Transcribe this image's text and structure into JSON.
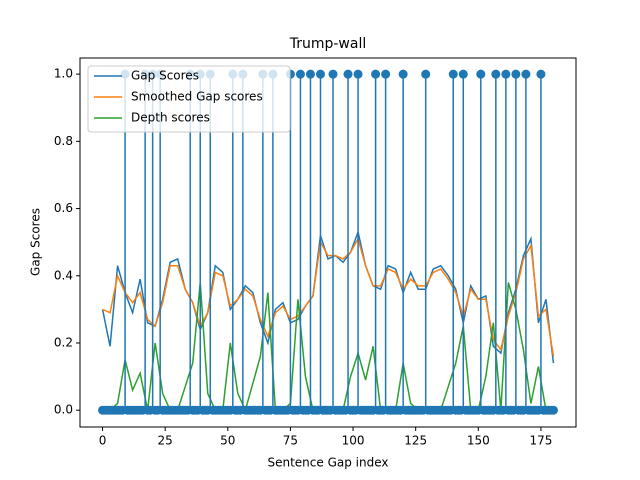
{
  "chart_data": {
    "type": "line",
    "title": "Trump-wall",
    "xlabel": "Sentence Gap index",
    "ylabel": "Gap Scores",
    "xlim": [
      -9,
      189
    ],
    "ylim": [
      -0.05,
      1.048
    ],
    "xticks": [
      0,
      25,
      50,
      75,
      100,
      125,
      150,
      175
    ],
    "yticks": [
      {
        "value": 0,
        "label": "0.0"
      },
      0.2,
      0.4,
      0.6,
      0.8,
      {
        "value": 1,
        "label": "1.0"
      }
    ],
    "legend": "upper left",
    "x": [
      0,
      3,
      6,
      9,
      12,
      15,
      18,
      21,
      24,
      27,
      30,
      33,
      36,
      39,
      42,
      45,
      48,
      51,
      54,
      57,
      60,
      63,
      66,
      69,
      72,
      75,
      78,
      81,
      84,
      87,
      90,
      93,
      96,
      99,
      102,
      105,
      108,
      111,
      114,
      117,
      120,
      123,
      126,
      129,
      132,
      135,
      138,
      141,
      144,
      147,
      150,
      153,
      156,
      159,
      162,
      165,
      168,
      171,
      174,
      177,
      180
    ],
    "series": [
      {
        "name": "Gap Scores",
        "color": "#1f77b4",
        "values": [
          0.3,
          0.19,
          0.43,
          0.35,
          0.29,
          0.39,
          0.26,
          0.25,
          0.33,
          0.44,
          0.45,
          0.36,
          0.32,
          0.24,
          0.29,
          0.43,
          0.41,
          0.3,
          0.33,
          0.37,
          0.35,
          0.26,
          0.2,
          0.3,
          0.32,
          0.26,
          0.27,
          0.31,
          0.34,
          0.52,
          0.45,
          0.46,
          0.44,
          0.47,
          0.53,
          0.43,
          0.37,
          0.36,
          0.43,
          0.42,
          0.35,
          0.41,
          0.36,
          0.36,
          0.42,
          0.43,
          0.4,
          0.36,
          0.26,
          0.37,
          0.33,
          0.34,
          0.19,
          0.17,
          0.29,
          0.36,
          0.46,
          0.51,
          0.26,
          0.33,
          0.14
        ]
      },
      {
        "name": "Smoothed Gap scores",
        "color": "#ff7f0e",
        "values": [
          0.3,
          0.29,
          0.4,
          0.35,
          0.32,
          0.35,
          0.27,
          0.25,
          0.32,
          0.43,
          0.43,
          0.36,
          0.32,
          0.25,
          0.29,
          0.41,
          0.4,
          0.31,
          0.33,
          0.36,
          0.34,
          0.27,
          0.22,
          0.29,
          0.31,
          0.27,
          0.28,
          0.31,
          0.34,
          0.5,
          0.46,
          0.46,
          0.45,
          0.47,
          0.51,
          0.43,
          0.37,
          0.37,
          0.42,
          0.41,
          0.36,
          0.39,
          0.37,
          0.37,
          0.41,
          0.42,
          0.39,
          0.35,
          0.28,
          0.36,
          0.33,
          0.33,
          0.21,
          0.18,
          0.28,
          0.35,
          0.45,
          0.49,
          0.28,
          0.3,
          0.16
        ]
      },
      {
        "name": "Depth scores",
        "color": "#2ca02c",
        "values": [
          0,
          0,
          0.02,
          0.15,
          0.06,
          0.11,
          0,
          0.2,
          0.05,
          0,
          0,
          0.07,
          0.14,
          0.38,
          0.05,
          0,
          0,
          0.2,
          0.05,
          0,
          0.08,
          0.16,
          0.35,
          0,
          0,
          0.02,
          0.33,
          0.1,
          0,
          0,
          0,
          0,
          0,
          0.1,
          0.17,
          0.09,
          0.19,
          0,
          0,
          0,
          0.14,
          0.02,
          0,
          0,
          0,
          0,
          0.07,
          0.14,
          0.25,
          0,
          0,
          0.1,
          0.26,
          0,
          0.38,
          0.3,
          0.18,
          0.02,
          0.13,
          0,
          0
        ]
      }
    ],
    "stems": {
      "color": "#1f77b4",
      "baseline_color": "#d62728",
      "x": [
        0,
        1,
        2,
        3,
        4,
        5,
        6,
        7,
        8,
        9,
        10,
        11,
        12,
        13,
        14,
        15,
        16,
        17,
        18,
        19,
        20,
        21,
        22,
        23,
        24,
        25,
        26,
        27,
        28,
        29,
        30,
        31,
        32,
        33,
        34,
        35,
        36,
        37,
        38,
        39,
        40,
        41,
        42,
        43,
        44,
        45,
        46,
        47,
        48,
        49,
        50,
        51,
        52,
        53,
        54,
        55,
        56,
        57,
        58,
        59,
        60,
        61,
        62,
        63,
        64,
        65,
        66,
        67,
        68,
        69,
        70,
        71,
        72,
        73,
        74,
        75,
        76,
        77,
        78,
        79,
        80,
        81,
        82,
        83,
        84,
        85,
        86,
        87,
        88,
        89,
        90,
        91,
        92,
        93,
        94,
        95,
        96,
        97,
        98,
        99,
        100,
        101,
        102,
        103,
        104,
        105,
        106,
        107,
        108,
        109,
        110,
        111,
        112,
        113,
        114,
        115,
        116,
        117,
        118,
        119,
        120,
        121,
        122,
        123,
        124,
        125,
        126,
        127,
        128,
        129,
        130,
        131,
        132,
        133,
        134,
        135,
        136,
        137,
        138,
        139,
        140,
        141,
        142,
        143,
        144,
        145,
        146,
        147,
        148,
        149,
        150,
        151,
        152,
        153,
        154,
        155,
        156,
        157,
        158,
        159,
        160,
        161,
        162,
        163,
        164,
        165,
        166,
        167,
        168,
        169,
        170,
        171,
        172,
        173,
        174,
        175,
        176,
        177,
        178,
        179,
        180
      ],
      "values": [
        0,
        0,
        0,
        0,
        0,
        0,
        0,
        0,
        0,
        1,
        0,
        0,
        0,
        0,
        0,
        0,
        0,
        1,
        0,
        0,
        1,
        0,
        0,
        1,
        0,
        0,
        0,
        0,
        0,
        0,
        0,
        0,
        0,
        0,
        0,
        1,
        0,
        0,
        0,
        1,
        0,
        0,
        0,
        1,
        0,
        0,
        0,
        0,
        0,
        0,
        0,
        0,
        1,
        0,
        0,
        0,
        1,
        0,
        0,
        0,
        0,
        0,
        0,
        0,
        1,
        0,
        0,
        0,
        1,
        0,
        0,
        0,
        0,
        0,
        0,
        1,
        0,
        0,
        0,
        1,
        0,
        0,
        0,
        1,
        0,
        0,
        0,
        1,
        0,
        0,
        0,
        0,
        1,
        0,
        0,
        0,
        0,
        0,
        1,
        0,
        0,
        0,
        1,
        0,
        0,
        0,
        0,
        0,
        0,
        1,
        0,
        0,
        0,
        1,
        0,
        0,
        0,
        0,
        0,
        0,
        1,
        0,
        0,
        0,
        0,
        0,
        0,
        0,
        0,
        1,
        0,
        0,
        0,
        0,
        0,
        0,
        0,
        0,
        0,
        0,
        1,
        0,
        0,
        0,
        1,
        0,
        0,
        0,
        0,
        0,
        0,
        1,
        0,
        0,
        0,
        0,
        0,
        1,
        0,
        0,
        0,
        1,
        0,
        0,
        0,
        1,
        0,
        0,
        0,
        1,
        0,
        0,
        0,
        0,
        0,
        1,
        0,
        0,
        0,
        0,
        0
      ]
    }
  }
}
